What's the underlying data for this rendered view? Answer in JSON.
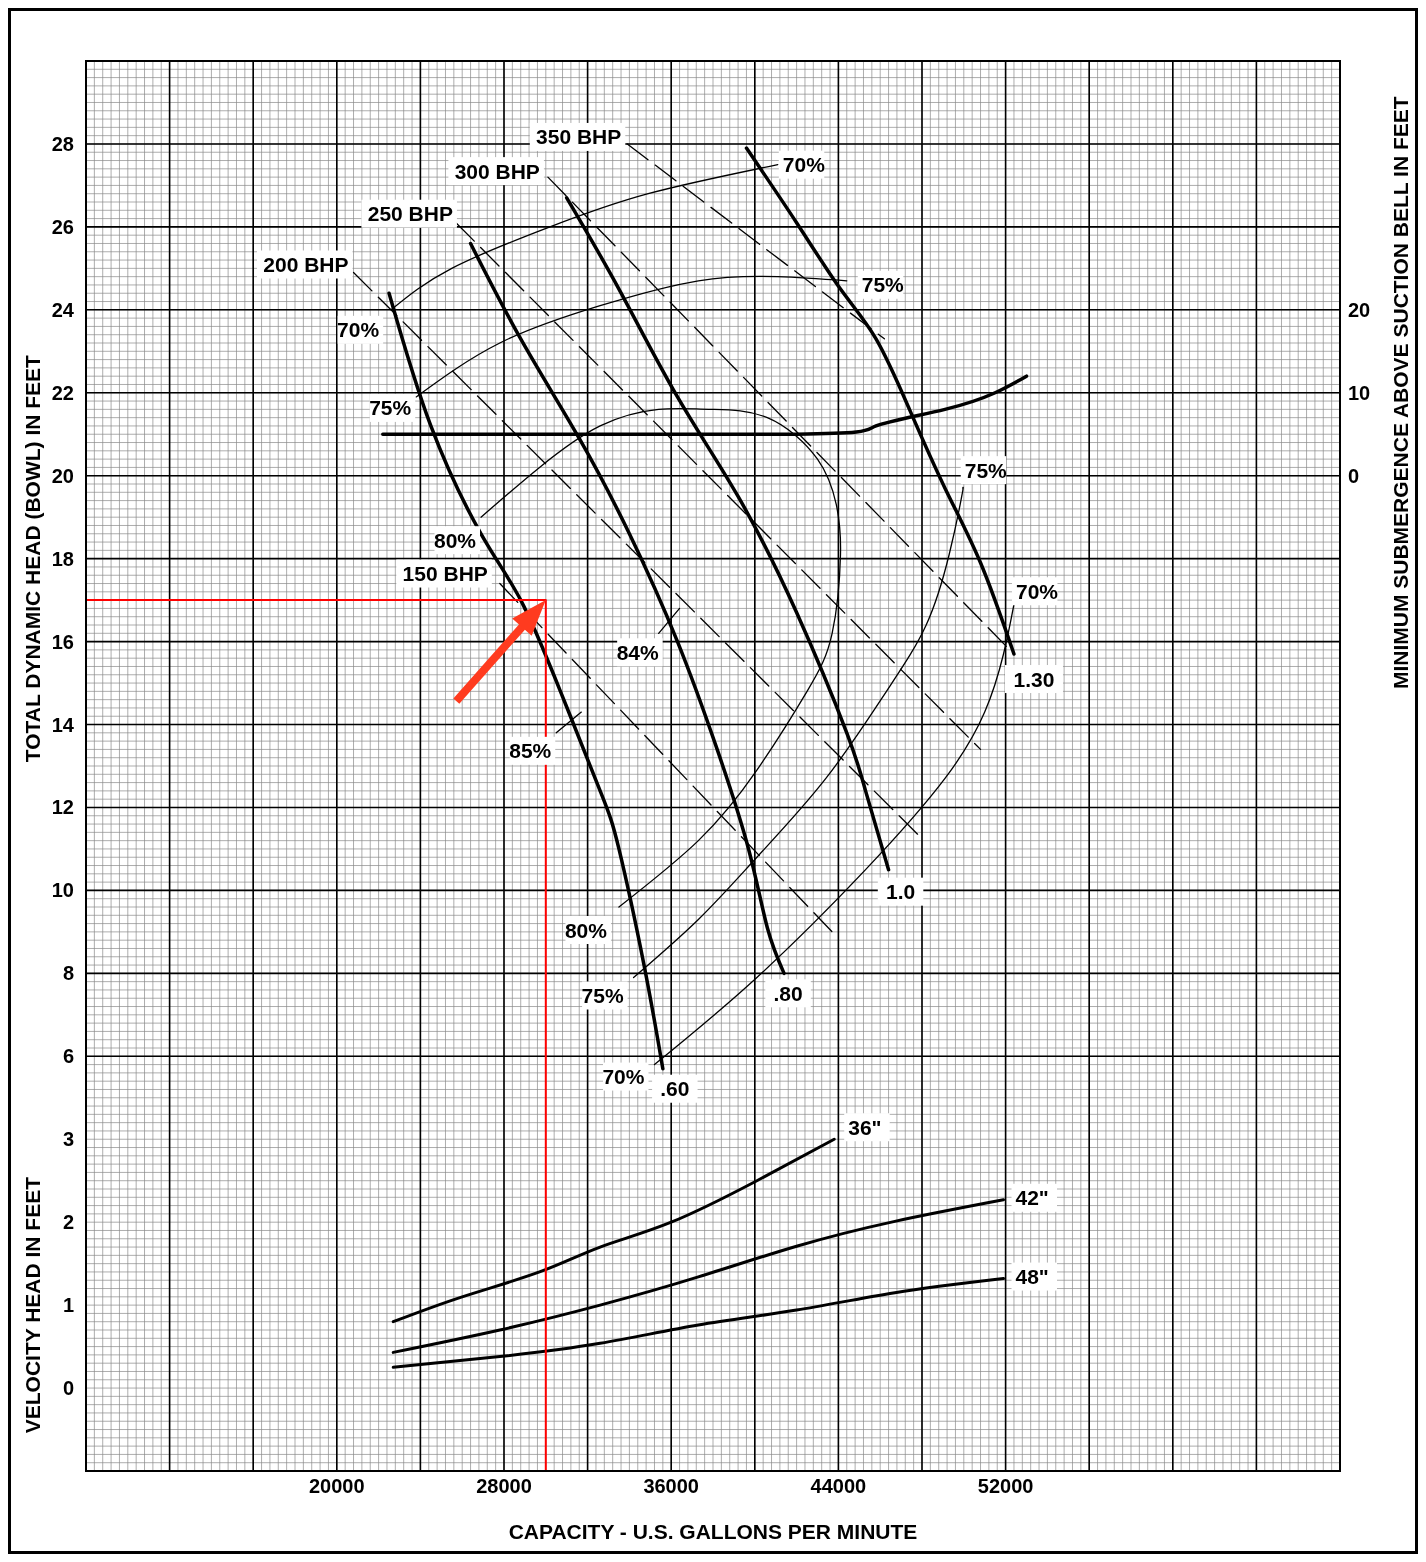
{
  "chart_data": {
    "type": "line",
    "xlabel": "CAPACITY - U.S. GALLONS PER MINUTE",
    "ylabel": "TOTAL DYNAMIC HEAD (BOWL) IN FEET",
    "y2label": "MINIMUM SUBMERGENCE ABOVE SUCTION BELL IN FEET",
    "y3label": "VELOCITY HEAD IN FEET",
    "xlim": [
      8000,
      68000
    ],
    "xticks": [
      {
        "value": 12000,
        "label": null
      },
      {
        "value": 16000,
        "label": null
      },
      20000,
      {
        "value": 24000,
        "label": null
      },
      28000,
      {
        "value": 32000,
        "label": null
      },
      36000,
      {
        "value": 40000,
        "label": null
      },
      44000,
      {
        "value": 48000,
        "label": null
      },
      52000,
      {
        "value": 56000,
        "label": null
      },
      {
        "value": 60000,
        "label": null
      },
      {
        "value": 64000,
        "label": null
      }
    ],
    "ylim": [
      -4,
      30
    ],
    "yticks": [
      6,
      8,
      10,
      12,
      14,
      16,
      18,
      20,
      22,
      24,
      26,
      28
    ],
    "y2lim": [
      -120,
      50
    ],
    "y2ticks": [
      0,
      10,
      20
    ],
    "y3lim": [
      -1,
      16
    ],
    "y3ticks": [
      0,
      1,
      2,
      3
    ],
    "grid": true,
    "marker": "none",
    "series": [
      {
        "name": ".60",
        "color": "#000000",
        "x": [
          22500,
          24500,
          26900,
          28800,
          30700,
          32600,
          33500,
          34700,
          35600
        ],
        "values": [
          24.4,
          21.2,
          18.6,
          17.0,
          14.8,
          12.4,
          11.0,
          8.2,
          5.7
        ]
      },
      {
        "name": ".80",
        "color": "#000000",
        "x": [
          26400,
          28800,
          31600,
          34000,
          36300,
          38200,
          39700,
          40600,
          41400
        ],
        "values": [
          25.6,
          23.3,
          20.9,
          18.6,
          16.0,
          13.4,
          11.0,
          9.1,
          8.0
        ]
      },
      {
        "name": "1.0",
        "color": "#000000",
        "x": [
          31000,
          33500,
          36300,
          39200,
          42000,
          44400,
          45300,
          46400
        ],
        "values": [
          26.7,
          24.5,
          21.9,
          19.5,
          16.7,
          13.8,
          12.4,
          10.5
        ]
      },
      {
        "name": "1.30",
        "color": "#000000",
        "x": [
          39600,
          42000,
          44100,
          45800,
          47400,
          49100,
          50800,
          52400
        ],
        "values": [
          27.9,
          26.1,
          24.5,
          23.3,
          21.6,
          19.7,
          17.9,
          15.7
        ]
      },
      {
        "name": "150 BHP",
        "color": "#000000",
        "line_style": "dashed",
        "x": [
          27800,
          43700
        ],
        "values": [
          17.4,
          9.0
        ]
      },
      {
        "name": "200 BHP",
        "color": "#000000",
        "line_style": "dashed",
        "x": [
          20800,
          47900
        ],
        "values": [
          24.9,
          11.3
        ]
      },
      {
        "name": "250 BHP",
        "color": "#000000",
        "line_style": "dashed",
        "x": [
          25700,
          50800
        ],
        "values": [
          26.1,
          13.4
        ]
      },
      {
        "name": "300 BHP",
        "color": "#000000",
        "line_style": "dashed",
        "x": [
          30100,
          52200
        ],
        "values": [
          27.2,
          15.8
        ]
      },
      {
        "name": "350 BHP",
        "color": "#000000",
        "line_style": "dashed",
        "x": [
          33900,
          46200
        ],
        "values": [
          28.0,
          23.3
        ]
      },
      {
        "name": "70%",
        "color": "#000000",
        "x": [
          22600,
          25500,
          30200,
          34900,
          41100
        ],
        "values": [
          24.0,
          25.0,
          26.0,
          26.8,
          27.5
        ]
      },
      {
        "name": "75%",
        "color": "#000000",
        "x": [
          23800,
          27800,
          32600,
          37300,
          41100,
          44400
        ],
        "values": [
          21.9,
          23.2,
          24.1,
          24.7,
          24.8,
          24.7
        ]
      },
      {
        "name": "80%",
        "color": "#000000",
        "x": [
          26900,
          29700,
          32600,
          35400,
          37800,
          40600,
          43000,
          43900,
          44100,
          43700,
          42500,
          40100,
          37300,
          33500
        ],
        "values": [
          19.0,
          20.2,
          21.2,
          21.6,
          21.6,
          21.4,
          20.4,
          19.3,
          18.1,
          16.2,
          14.8,
          12.9,
          11.2,
          9.6
        ]
      },
      {
        "name": "84%",
        "color": "#000000",
        "x": [
          35400,
          36400
        ],
        "values": [
          16.2,
          16.8
        ]
      },
      {
        "name": "85%",
        "color": "#000000",
        "x": [
          30500,
          31700
        ],
        "values": [
          13.8,
          14.3
        ]
      },
      {
        "name": "75%",
        "color": "#000000",
        "x": [
          34200,
          37300,
          40100,
          43400,
          46300,
          48200,
          49300,
          49900,
          49950
        ],
        "values": [
          7.9,
          9.3,
          10.8,
          12.7,
          14.8,
          16.4,
          18.1,
          19.5,
          19.7
        ]
      },
      {
        "name": "70%",
        "color": "#000000",
        "x": [
          35200,
          40100,
          45300,
          49100,
          51000,
          51900,
          52400
        ],
        "values": [
          5.8,
          7.9,
          10.5,
          12.7,
          14.3,
          15.7,
          16.9
        ]
      },
      {
        "color": "#000000",
        "axis": "y2",
        "x": [
          22200,
          42000,
          45800,
          49100,
          51500,
          53000
        ],
        "values": [
          5,
          5,
          6,
          8,
          10,
          12
        ]
      },
      {
        "name": "36\"",
        "color": "#000000",
        "axis": "y3",
        "x": [
          22700,
          26000,
          29700,
          32600,
          36000,
          40100,
          43800
        ],
        "values": [
          0.8,
          1.1,
          1.4,
          1.7,
          2.0,
          2.5,
          3.0
        ]
      },
      {
        "name": "42\"",
        "color": "#000000",
        "axis": "y3",
        "x": [
          22700,
          27800,
          32600,
          37300,
          42000,
          46700,
          51900
        ],
        "values": [
          0.43,
          0.7,
          1.0,
          1.34,
          1.71,
          2.01,
          2.27
        ]
      },
      {
        "name": "48\"",
        "color": "#000000",
        "axis": "y3",
        "x": [
          22700,
          27800,
          32600,
          37300,
          42000,
          46700,
          51900
        ],
        "values": [
          0.25,
          0.38,
          0.54,
          0.76,
          0.94,
          1.15,
          1.32
        ]
      },
      {
        "color": "#ff0000",
        "x": [
          8000,
          30000,
          30000
        ],
        "values": [
          17,
          17,
          -4
        ]
      }
    ]
  }
}
